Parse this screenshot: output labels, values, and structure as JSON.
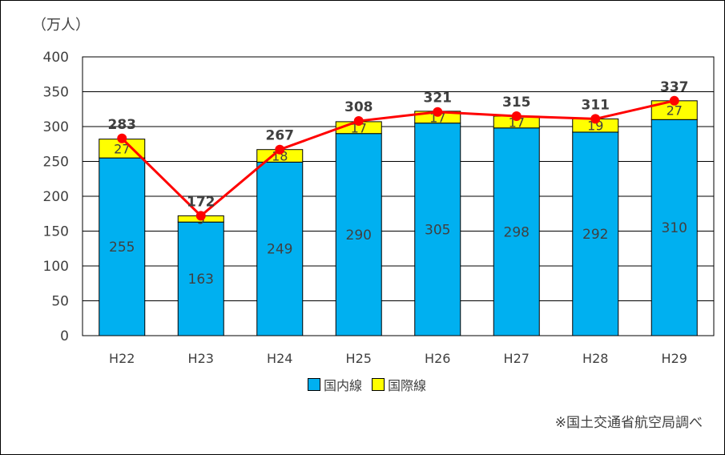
{
  "chart_data": {
    "type": "bar",
    "stacked": true,
    "unit_label": "（万人）",
    "categories": [
      "H22",
      "H23",
      "H24",
      "H25",
      "H26",
      "H27",
      "H28",
      "H29"
    ],
    "series": [
      {
        "name": "国内線",
        "color": "#00b0f0",
        "values": [
          255,
          163,
          249,
          290,
          305,
          298,
          292,
          310
        ]
      },
      {
        "name": "国際線",
        "color": "#ffff00",
        "values": [
          27,
          9,
          18,
          17,
          17,
          17,
          19,
          27
        ]
      }
    ],
    "totals": {
      "color": "#ff0000",
      "values": [
        283,
        172,
        267,
        308,
        321,
        315,
        311,
        337
      ]
    },
    "ylim": [
      0,
      400
    ],
    "yticks": [
      0,
      50,
      100,
      150,
      200,
      250,
      300,
      350,
      400
    ],
    "grid": true,
    "legend_position": "bottom"
  },
  "source_note": "※国土交通省航空局調べ"
}
